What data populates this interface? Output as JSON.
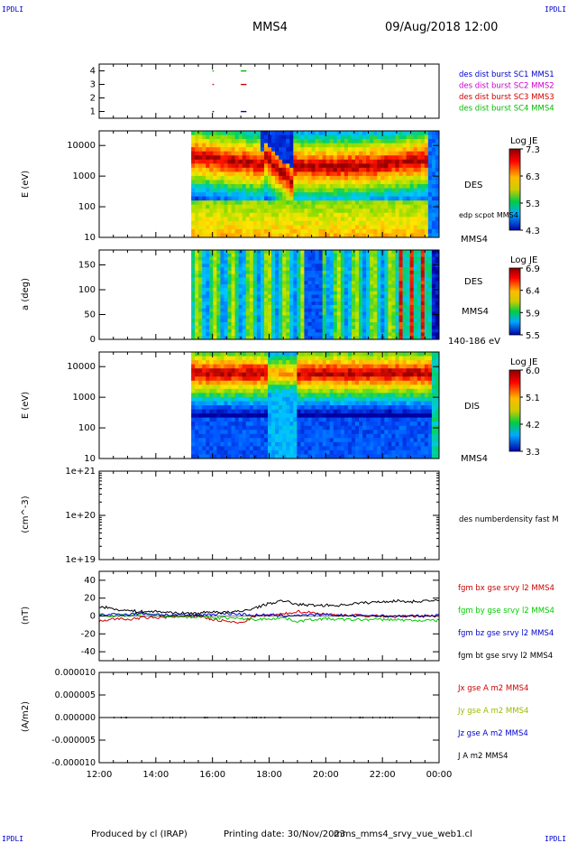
{
  "header": {
    "corner_label": "IPDLI",
    "spacecraft": "MMS4",
    "date": "09/Aug/2018 12:00"
  },
  "footer": {
    "produced_by": "Produced by cl (IRAP)",
    "printing_date": "Printing date: 30/Nov/2023",
    "product": "mms_mms4_srvy_vue_web1.cl"
  },
  "colors": {
    "frame": "#000000",
    "mms1": "#0000cc",
    "mms2": "#cc00cc",
    "mms3": "#cc0000",
    "mms4": "#00bb00",
    "bx": "#cc0000",
    "by": "#00cc00",
    "bz": "#0000cc",
    "bt": "#000000"
  },
  "chart_data": [
    {
      "type": "scatter",
      "id": "burst",
      "yticks": [
        "1",
        "2",
        "3",
        "4"
      ],
      "ylim": [
        0.5,
        4.5
      ],
      "legend": [
        {
          "text": "des dist burst SC1 MMS1",
          "color": "#0000cc"
        },
        {
          "text": "des dist burst SC2 MMS2",
          "color": "#cc00cc"
        },
        {
          "text": "des dist burst SC3 MMS3",
          "color": "#cc0000"
        },
        {
          "text": "des dist burst SC4 MMS4",
          "color": "#00bb00"
        }
      ],
      "intervals": [
        {
          "sc": 1,
          "start": 16.0,
          "end": 16.05
        },
        {
          "sc": 1,
          "start": 17.0,
          "end": 17.2
        },
        {
          "sc": 3,
          "start": 16.0,
          "end": 16.05
        },
        {
          "sc": 3,
          "start": 17.0,
          "end": 17.2
        },
        {
          "sc": 4,
          "start": 16.0,
          "end": 16.05
        },
        {
          "sc": 4,
          "start": 17.0,
          "end": 17.2
        }
      ]
    },
    {
      "type": "heatmap",
      "id": "des_energy",
      "ylabel": "E (eV)",
      "yticks": [
        "10",
        "100",
        "1000",
        "10000"
      ],
      "ylim": [
        10,
        30000
      ],
      "label_right": "DES",
      "label_right2": "edp scpot MMS4",
      "label_right3": "MMS4",
      "colorbar": {
        "title": "Log JE",
        "ticks": [
          "7.3",
          "6.3",
          "5.3",
          "4.3"
        ]
      },
      "data_start_hour": 15.25
    },
    {
      "type": "heatmap",
      "id": "des_pitch",
      "ylabel": "a (deg)",
      "yticks": [
        "0",
        "50",
        "100",
        "150"
      ],
      "ylim": [
        0,
        180
      ],
      "label_right": "DES",
      "label_right2": "MMS4",
      "label_right3": "140-186 eV",
      "colorbar": {
        "title": "Log JE",
        "ticks": [
          "6.9",
          "6.4",
          "5.9",
          "5.5"
        ]
      },
      "data_start_hour": 15.25
    },
    {
      "type": "heatmap",
      "id": "dis_energy",
      "ylabel": "E (eV)",
      "yticks": [
        "10",
        "100",
        "1000",
        "10000"
      ],
      "ylim": [
        10,
        30000
      ],
      "label_right": "DIS",
      "label_right2": "MMS4",
      "colorbar": {
        "title": "Log JE",
        "ticks": [
          "6.0",
          "5.1",
          "4.2",
          "3.3"
        ]
      },
      "data_start_hour": 15.25
    },
    {
      "type": "line",
      "id": "density",
      "ylabel": "(cm^-3)",
      "yticks": [
        "1e+19",
        "1e+20",
        "1e+21"
      ],
      "ylim": [
        1e+19,
        1e+21
      ],
      "legend": [
        {
          "text": "des numberdensity fast M",
          "color": "#000000"
        }
      ],
      "series": []
    },
    {
      "type": "line",
      "id": "fgm",
      "ylabel": "(nT)",
      "yticks": [
        "-40",
        "-20",
        "0",
        "20",
        "40"
      ],
      "ylim": [
        -50,
        50
      ],
      "legend": [
        {
          "text": "fgm bx gse srvy l2 MMS4",
          "color": "#cc0000"
        },
        {
          "text": "fgm by gse srvy l2 MMS4",
          "color": "#00cc00"
        },
        {
          "text": "fgm bz gse srvy l2 MMS4",
          "color": "#0000cc"
        },
        {
          "text": "fgm bt gse srvy l2 MMS4",
          "color": "#000000"
        }
      ],
      "x": [
        12.0,
        12.5,
        13.0,
        13.5,
        14.0,
        14.5,
        15.0,
        15.5,
        16.0,
        16.5,
        17.0,
        17.5,
        18.0,
        18.5,
        19.0,
        19.5,
        20.0,
        20.5,
        21.0,
        21.5,
        22.0,
        22.5,
        23.0,
        23.5,
        24.0
      ],
      "series": [
        {
          "values": [
            -6,
            -3,
            -4,
            -2,
            -2,
            -1,
            -1,
            0,
            -4,
            -6,
            -8,
            0,
            1,
            2,
            5,
            4,
            2,
            1,
            1,
            0,
            0,
            -1,
            0,
            0,
            0
          ]
        },
        {
          "values": [
            2,
            0,
            1,
            2,
            1,
            0,
            -1,
            -1,
            -2,
            -2,
            -3,
            -4,
            -3,
            -2,
            -6,
            -4,
            -3,
            -4,
            -4,
            -4,
            -4,
            -4,
            -5,
            -5,
            -5
          ]
        },
        {
          "values": [
            1,
            2,
            2,
            3,
            2,
            1,
            1,
            1,
            2,
            3,
            2,
            1,
            1,
            0,
            1,
            1,
            1,
            1,
            0,
            1,
            0,
            0,
            0,
            0,
            1
          ]
        },
        {
          "values": [
            11,
            8,
            6,
            5,
            5,
            4,
            3,
            3,
            5,
            4,
            5,
            9,
            14,
            17,
            13,
            12,
            12,
            12,
            14,
            15,
            16,
            17,
            16,
            17,
            17
          ]
        }
      ]
    },
    {
      "type": "line",
      "id": "current",
      "ylabel": "(A/m2)",
      "yticks": [
        "-0.000010",
        "-0.000005",
        "0.000000",
        "0.000005",
        "0.000010"
      ],
      "ylim": [
        -1e-05,
        1e-05
      ],
      "legend": [
        {
          "text": "Jx gse A m2 MMS4",
          "color": "#cc0000"
        },
        {
          "text": "Jy gse A m2 MMS4",
          "color": "#99bb00"
        },
        {
          "text": "Jz gse A m2 MMS4",
          "color": "#0000cc"
        },
        {
          "text": "J A m2 MMS4",
          "color": "#000000"
        }
      ],
      "x": [
        12.0,
        24.0
      ],
      "series": [
        {
          "values": [
            0,
            0
          ]
        }
      ]
    }
  ],
  "xaxis": {
    "ticks": [
      "12:00",
      "14:00",
      "16:00",
      "18:00",
      "20:00",
      "22:00",
      "00:00"
    ],
    "range_hours": [
      12,
      24
    ]
  }
}
